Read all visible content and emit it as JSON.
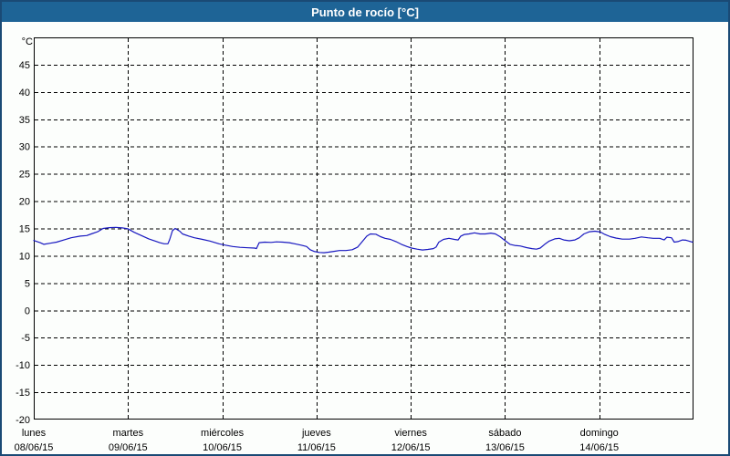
{
  "window": {
    "title": "Punto de rocío [°C]",
    "colors": {
      "title_bar": "#1E6496",
      "title_text": "#FFFFFF",
      "frame_border": "#1A4A75",
      "background": "#FCFEFC",
      "plot_border": "#000000",
      "grid": "#000000",
      "label_text": "#000000"
    }
  },
  "chart_data": {
    "type": "line",
    "title": "Punto de rocío [°C]",
    "ylabel": "°C",
    "ylim": [
      -20,
      50
    ],
    "yticks": [
      45,
      40,
      35,
      30,
      25,
      20,
      15,
      10,
      5,
      0,
      -5,
      -10,
      -15,
      -20
    ],
    "xlim_days": [
      0,
      7
    ],
    "grid": "dashed",
    "legend_position": "none",
    "x_days": [
      {
        "day": "lunes",
        "date": "08/06/15"
      },
      {
        "day": "martes",
        "date": "09/06/15"
      },
      {
        "day": "miércoles",
        "date": "10/06/15"
      },
      {
        "day": "jueves",
        "date": "11/06/15"
      },
      {
        "day": "viernes",
        "date": "12/06/15"
      },
      {
        "day": "sábado",
        "date": "13/06/15"
      },
      {
        "day": "domingo",
        "date": "14/06/15"
      }
    ],
    "series": [
      {
        "name": "Punto de rocío",
        "units": "°C",
        "color": "#1818C0",
        "points": [
          [
            0.0,
            12.8
          ],
          [
            0.068,
            12.4
          ],
          [
            0.107,
            12.1
          ],
          [
            0.174,
            12.3
          ],
          [
            0.242,
            12.5
          ],
          [
            0.32,
            12.9
          ],
          [
            0.397,
            13.3
          ],
          [
            0.494,
            13.6
          ],
          [
            0.562,
            13.7
          ],
          [
            0.61,
            14.0
          ],
          [
            0.678,
            14.4
          ],
          [
            0.736,
            15.0
          ],
          [
            0.804,
            15.15
          ],
          [
            0.871,
            15.2
          ],
          [
            0.939,
            15.1
          ],
          [
            0.997,
            14.95
          ],
          [
            1.065,
            14.3
          ],
          [
            1.142,
            13.7
          ],
          [
            1.22,
            13.1
          ],
          [
            1.288,
            12.7
          ],
          [
            1.336,
            12.4
          ],
          [
            1.384,
            12.2
          ],
          [
            1.423,
            12.2
          ],
          [
            1.443,
            13.0
          ],
          [
            1.472,
            14.6
          ],
          [
            1.501,
            15.0
          ],
          [
            1.549,
            14.5
          ],
          [
            1.578,
            14.0
          ],
          [
            1.646,
            13.6
          ],
          [
            1.704,
            13.3
          ],
          [
            1.791,
            13.0
          ],
          [
            1.869,
            12.7
          ],
          [
            1.965,
            12.2
          ],
          [
            2.033,
            11.95
          ],
          [
            2.111,
            11.7
          ],
          [
            2.188,
            11.55
          ],
          [
            2.275,
            11.45
          ],
          [
            2.343,
            11.4
          ],
          [
            2.362,
            11.3
          ],
          [
            2.391,
            12.4
          ],
          [
            2.45,
            12.5
          ],
          [
            2.517,
            12.45
          ],
          [
            2.575,
            12.55
          ],
          [
            2.643,
            12.5
          ],
          [
            2.711,
            12.4
          ],
          [
            2.769,
            12.2
          ],
          [
            2.837,
            11.95
          ],
          [
            2.895,
            11.7
          ],
          [
            2.933,
            11.1
          ],
          [
            2.972,
            10.8
          ],
          [
            3.03,
            10.6
          ],
          [
            3.079,
            10.55
          ],
          [
            3.127,
            10.65
          ],
          [
            3.185,
            10.8
          ],
          [
            3.243,
            10.95
          ],
          [
            3.311,
            10.95
          ],
          [
            3.379,
            11.1
          ],
          [
            3.437,
            11.6
          ],
          [
            3.485,
            12.6
          ],
          [
            3.534,
            13.6
          ],
          [
            3.572,
            14.0
          ],
          [
            3.63,
            13.95
          ],
          [
            3.679,
            13.5
          ],
          [
            3.727,
            13.2
          ],
          [
            3.785,
            13.0
          ],
          [
            3.843,
            12.6
          ],
          [
            3.901,
            12.1
          ],
          [
            3.96,
            11.7
          ],
          [
            4.008,
            11.4
          ],
          [
            4.066,
            11.2
          ],
          [
            4.124,
            11.05
          ],
          [
            4.182,
            11.15
          ],
          [
            4.24,
            11.3
          ],
          [
            4.269,
            11.6
          ],
          [
            4.298,
            12.5
          ],
          [
            4.347,
            13.0
          ],
          [
            4.405,
            13.2
          ],
          [
            4.463,
            13.0
          ],
          [
            4.502,
            12.9
          ],
          [
            4.531,
            13.6
          ],
          [
            4.569,
            13.9
          ],
          [
            4.618,
            14.0
          ],
          [
            4.676,
            14.2
          ],
          [
            4.734,
            14.0
          ],
          [
            4.792,
            14.0
          ],
          [
            4.85,
            14.15
          ],
          [
            4.898,
            14.0
          ],
          [
            4.947,
            13.5
          ],
          [
            4.995,
            12.85
          ],
          [
            5.053,
            12.1
          ],
          [
            5.102,
            11.9
          ],
          [
            5.16,
            11.8
          ],
          [
            5.228,
            11.5
          ],
          [
            5.286,
            11.3
          ],
          [
            5.334,
            11.2
          ],
          [
            5.373,
            11.4
          ],
          [
            5.421,
            12.1
          ],
          [
            5.47,
            12.7
          ],
          [
            5.528,
            13.1
          ],
          [
            5.576,
            13.2
          ],
          [
            5.624,
            12.9
          ],
          [
            5.683,
            12.75
          ],
          [
            5.741,
            12.9
          ],
          [
            5.789,
            13.3
          ],
          [
            5.837,
            14.0
          ],
          [
            5.896,
            14.4
          ],
          [
            5.954,
            14.5
          ],
          [
            6.012,
            14.35
          ],
          [
            6.06,
            13.9
          ],
          [
            6.118,
            13.5
          ],
          [
            6.176,
            13.25
          ],
          [
            6.244,
            13.05
          ],
          [
            6.321,
            13.05
          ],
          [
            6.38,
            13.2
          ],
          [
            6.447,
            13.45
          ],
          [
            6.515,
            13.3
          ],
          [
            6.573,
            13.2
          ],
          [
            6.641,
            13.2
          ],
          [
            6.689,
            12.9
          ],
          [
            6.718,
            13.4
          ],
          [
            6.767,
            13.3
          ],
          [
            6.796,
            12.5
          ],
          [
            6.834,
            12.6
          ],
          [
            6.883,
            12.9
          ],
          [
            6.922,
            12.85
          ],
          [
            6.97,
            12.6
          ],
          [
            6.99,
            12.5
          ]
        ]
      }
    ]
  }
}
